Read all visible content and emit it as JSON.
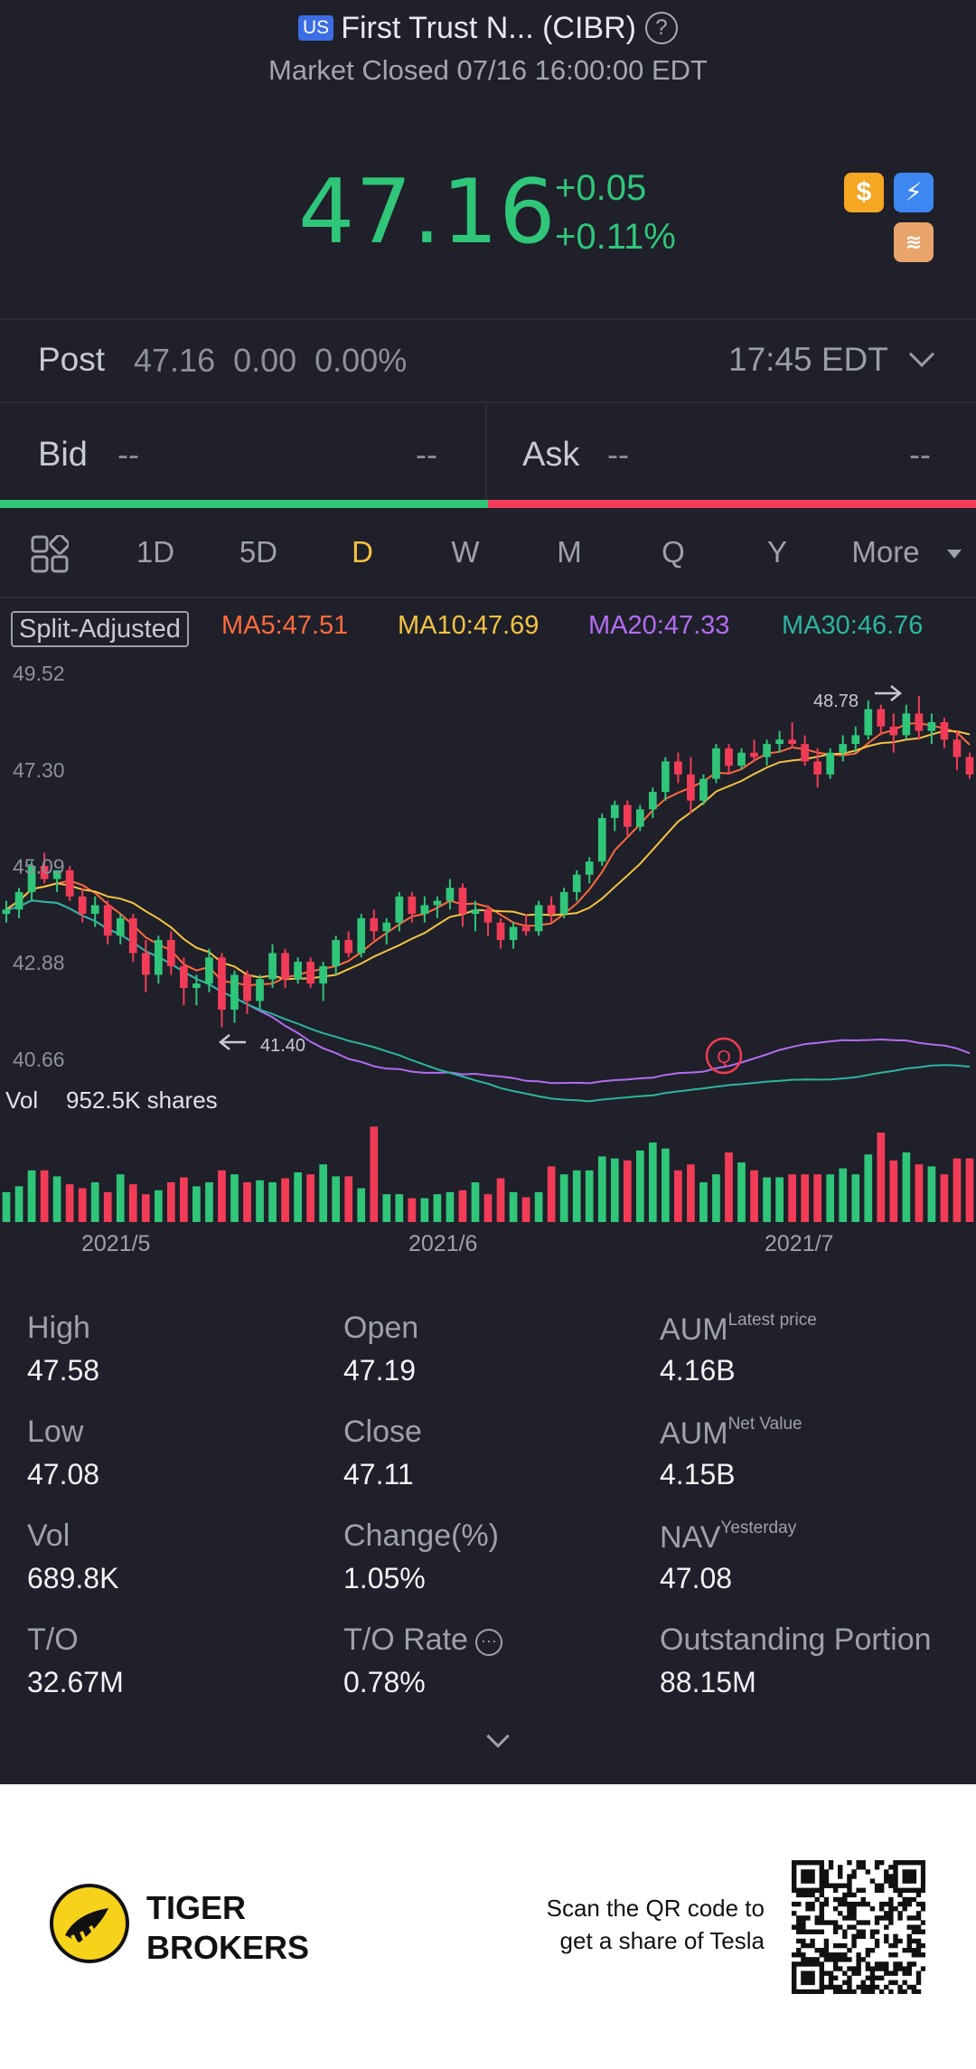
{
  "header": {
    "market_badge": "US",
    "title": "First Trust N... (CIBR)",
    "help_glyph": "?",
    "status": "Market Closed 07/16 16:00:00 EDT"
  },
  "quote": {
    "price": "47.16",
    "change_abs": "+0.05",
    "change_pct": "+0.11%",
    "icons": [
      "dollar-icon",
      "bolt-icon",
      "layers-icon"
    ],
    "up_color": "#2fc67a",
    "down_color": "#f23c57"
  },
  "post": {
    "label": "Post",
    "values": "47.16  0.00  0.00%",
    "time": "17:45 EDT"
  },
  "bidask": {
    "bid_label": "Bid",
    "bid_value": "--",
    "bid_size": "--",
    "ask_label": "Ask",
    "ask_value": "--",
    "ask_size": "--"
  },
  "tabs": [
    "1D",
    "5D",
    "D",
    "W",
    "M",
    "Q",
    "Y",
    "More"
  ],
  "active_tab": "D",
  "indicators": {
    "split_adjusted": "Split-Adjusted",
    "ma5": "MA5:47.51",
    "ma10": "MA10:47.69",
    "ma20": "MA20:47.33",
    "ma30": "MA30:46.76",
    "colors": {
      "ma5": "#ff6a3d",
      "ma10": "#f5c343",
      "ma20": "#b36cf2",
      "ma30": "#2cb5a0"
    }
  },
  "chart_data": {
    "type": "candlestick",
    "y_ticks": [
      "49.52",
      "47.30",
      "45.09",
      "42.88",
      "40.66"
    ],
    "ylim": [
      40.66,
      49.52
    ],
    "x_labels": [
      "2021/5",
      "2021/6",
      "2021/7"
    ],
    "high_marker": "48.78",
    "low_marker": "41.40",
    "q_marker": "Q",
    "candles": [
      [
        44.0,
        44.3,
        43.8,
        44.1
      ],
      [
        44.1,
        44.6,
        43.9,
        44.5
      ],
      [
        44.5,
        45.2,
        44.3,
        45.1
      ],
      [
        45.1,
        45.4,
        44.7,
        44.8
      ],
      [
        44.8,
        45.0,
        44.5,
        45.0
      ],
      [
        45.0,
        45.1,
        44.3,
        44.4
      ],
      [
        44.4,
        44.6,
        43.8,
        44.0
      ],
      [
        44.0,
        44.4,
        43.7,
        44.2
      ],
      [
        44.2,
        44.3,
        43.3,
        43.5
      ],
      [
        43.5,
        44.0,
        43.3,
        43.9
      ],
      [
        43.9,
        44.0,
        42.9,
        43.1
      ],
      [
        43.1,
        43.4,
        42.2,
        42.6
      ],
      [
        42.6,
        43.5,
        42.4,
        43.4
      ],
      [
        43.4,
        43.6,
        42.6,
        42.8
      ],
      [
        42.8,
        43.0,
        41.9,
        42.3
      ],
      [
        42.3,
        42.6,
        41.9,
        42.4
      ],
      [
        42.4,
        43.2,
        42.2,
        43.0
      ],
      [
        43.0,
        43.1,
        41.4,
        41.8
      ],
      [
        41.8,
        42.7,
        41.5,
        42.6
      ],
      [
        42.6,
        42.7,
        41.7,
        42.0
      ],
      [
        42.0,
        42.6,
        41.8,
        42.5
      ],
      [
        42.5,
        43.3,
        42.3,
        43.1
      ],
      [
        43.1,
        43.2,
        42.3,
        42.5
      ],
      [
        42.5,
        43.0,
        42.4,
        42.9
      ],
      [
        42.9,
        43.0,
        42.3,
        42.4
      ],
      [
        42.4,
        42.9,
        42.0,
        42.8
      ],
      [
        42.8,
        43.5,
        42.6,
        43.4
      ],
      [
        43.4,
        43.6,
        43.0,
        43.1
      ],
      [
        43.1,
        44.0,
        43.0,
        43.9
      ],
      [
        43.9,
        44.1,
        43.4,
        43.6
      ],
      [
        43.6,
        43.9,
        43.3,
        43.8
      ],
      [
        43.8,
        44.5,
        43.6,
        44.4
      ],
      [
        44.4,
        44.5,
        43.8,
        44.0
      ],
      [
        44.0,
        44.4,
        43.8,
        44.2
      ],
      [
        44.2,
        44.4,
        43.9,
        44.3
      ],
      [
        44.3,
        44.8,
        44.1,
        44.6
      ],
      [
        44.6,
        44.7,
        43.7,
        44.0
      ],
      [
        44.0,
        44.3,
        43.6,
        44.1
      ],
      [
        44.1,
        44.2,
        43.5,
        43.8
      ],
      [
        43.8,
        43.9,
        43.2,
        43.4
      ],
      [
        43.4,
        43.8,
        43.2,
        43.7
      ],
      [
        43.7,
        44.0,
        43.5,
        43.6
      ],
      [
        43.6,
        44.3,
        43.5,
        44.2
      ],
      [
        44.2,
        44.4,
        43.8,
        44.0
      ],
      [
        44.0,
        44.6,
        43.9,
        44.5
      ],
      [
        44.5,
        45.0,
        44.3,
        44.9
      ],
      [
        44.9,
        45.3,
        44.7,
        45.2
      ],
      [
        45.2,
        46.3,
        45.1,
        46.2
      ],
      [
        46.2,
        46.6,
        45.9,
        46.5
      ],
      [
        46.5,
        46.6,
        45.8,
        46.0
      ],
      [
        46.0,
        46.5,
        45.9,
        46.4
      ],
      [
        46.4,
        46.9,
        46.2,
        46.8
      ],
      [
        46.8,
        47.6,
        46.6,
        47.5
      ],
      [
        47.5,
        47.7,
        47.0,
        47.2
      ],
      [
        47.2,
        47.6,
        46.3,
        46.6
      ],
      [
        46.6,
        47.2,
        46.5,
        47.1
      ],
      [
        47.1,
        47.9,
        47.0,
        47.8
      ],
      [
        47.8,
        47.9,
        47.2,
        47.4
      ],
      [
        47.4,
        47.8,
        47.3,
        47.7
      ],
      [
        47.7,
        48.0,
        47.5,
        47.6
      ],
      [
        47.6,
        48.0,
        47.4,
        47.9
      ],
      [
        47.9,
        48.2,
        47.7,
        48.0
      ],
      [
        48.0,
        48.4,
        47.8,
        47.9
      ],
      [
        47.9,
        48.1,
        47.4,
        47.5
      ],
      [
        47.5,
        47.8,
        46.9,
        47.2
      ],
      [
        47.2,
        47.8,
        47.1,
        47.7
      ],
      [
        47.7,
        48.1,
        47.5,
        47.9
      ],
      [
        47.9,
        48.3,
        47.7,
        48.1
      ],
      [
        48.1,
        48.9,
        48.0,
        48.7
      ],
      [
        48.7,
        48.8,
        48.1,
        48.3
      ],
      [
        48.3,
        48.6,
        47.7,
        48.1
      ],
      [
        48.1,
        48.8,
        48.0,
        48.6
      ],
      [
        48.6,
        49.0,
        48.0,
        48.2
      ],
      [
        48.2,
        48.6,
        47.9,
        48.4
      ],
      [
        48.4,
        48.5,
        47.8,
        48.0
      ],
      [
        48.0,
        48.2,
        47.3,
        47.6
      ],
      [
        47.6,
        47.7,
        47.1,
        47.2
      ]
    ],
    "volume": [
      0.3,
      0.36,
      0.52,
      0.52,
      0.46,
      0.38,
      0.34,
      0.4,
      0.3,
      0.48,
      0.38,
      0.28,
      0.32,
      0.4,
      0.45,
      0.36,
      0.4,
      0.52,
      0.48,
      0.4,
      0.42,
      0.4,
      0.44,
      0.5,
      0.48,
      0.58,
      0.46,
      0.46,
      0.34,
      0.96,
      0.28,
      0.28,
      0.24,
      0.24,
      0.28,
      0.3,
      0.32,
      0.4,
      0.28,
      0.44,
      0.3,
      0.25,
      0.3,
      0.56,
      0.48,
      0.52,
      0.52,
      0.66,
      0.64,
      0.62,
      0.72,
      0.8,
      0.74,
      0.52,
      0.58,
      0.4,
      0.48,
      0.7,
      0.6,
      0.52,
      0.45,
      0.45,
      0.48,
      0.48,
      0.48,
      0.48,
      0.54,
      0.48,
      0.68,
      0.9,
      0.62,
      0.7,
      0.58,
      0.56,
      0.48,
      0.64,
      0.64
    ]
  },
  "volume_label": {
    "label": "Vol",
    "value": "952.5K shares"
  },
  "stats": [
    {
      "label": "High",
      "sup": "",
      "value": "47.58"
    },
    {
      "label": "Open",
      "sup": "",
      "value": "47.19"
    },
    {
      "label": "AUM",
      "sup": "Latest price",
      "value": "4.16B"
    },
    {
      "label": "Low",
      "sup": "",
      "value": "47.08"
    },
    {
      "label": "Close",
      "sup": "",
      "value": "47.11"
    },
    {
      "label": "AUM",
      "sup": "Net Value",
      "value": "4.15B"
    },
    {
      "label": "Vol",
      "sup": "",
      "value": "689.8K"
    },
    {
      "label": "Change(%)",
      "sup": "",
      "value": "1.05%"
    },
    {
      "label": "NAV",
      "sup": "Yesterday",
      "value": "47.08"
    },
    {
      "label": "T/O",
      "sup": "",
      "value": "32.67M"
    },
    {
      "label": "T/O Rate",
      "sup": "",
      "value": "0.78%"
    },
    {
      "label": "Outstanding Portion",
      "sup": "",
      "value": "88.15M"
    }
  ],
  "footer": {
    "brand_line1": "TIGER",
    "brand_line2": "BROKERS",
    "scan_line1": "Scan the QR code to",
    "scan_line2": "get a share of Tesla"
  }
}
